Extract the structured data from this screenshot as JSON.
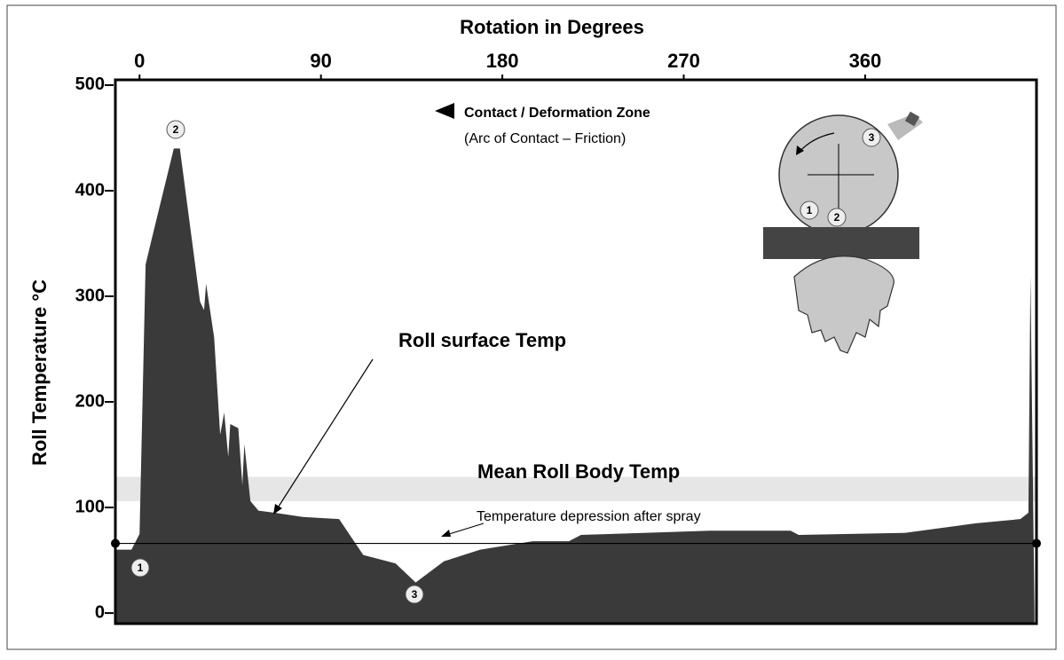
{
  "chart_data": {
    "type": "area",
    "title": "Rotation in Degrees",
    "y_label": "Roll Temperature  °C",
    "x": [
      -12,
      -4,
      0,
      3,
      6,
      17,
      20,
      30,
      32,
      33,
      37,
      40,
      42,
      44,
      45,
      49,
      51,
      52,
      55,
      59,
      67,
      81,
      99,
      111,
      127,
      137,
      151,
      169,
      195,
      213,
      219,
      283,
      323,
      327,
      380,
      415,
      437,
      441,
      442,
      444
    ],
    "values": [
      60,
      60,
      75,
      330,
      354,
      440,
      440,
      295,
      287,
      312,
      261,
      169,
      190,
      148,
      179,
      175,
      121,
      160,
      106,
      97,
      95,
      91,
      89,
      55,
      47,
      29,
      49,
      60,
      68,
      68,
      74,
      78,
      78,
      74,
      76,
      85,
      89,
      95,
      320,
      1
    ],
    "color": "#3a3a3a",
    "xlim": [
      -12,
      445
    ],
    "xticks": [
      0,
      90,
      180,
      270,
      360
    ],
    "ylim": [
      -10,
      505
    ],
    "yticks": [
      0,
      100,
      200,
      300,
      400,
      500
    ],
    "band": {
      "label": "Mean Roll Body Temp",
      "range": [
        106,
        129
      ],
      "color": "#e6e6e6"
    },
    "reference_line": {
      "value": 66,
      "label": "Temperature depression after spray"
    },
    "annotations": [
      "Roll surface Temp",
      "Contact / Deformation Zone",
      "(Arc of Contact – Friction)"
    ],
    "markers": [
      "1",
      "2",
      "3"
    ],
    "diagram_labels": [
      "3",
      "1",
      "2"
    ]
  }
}
